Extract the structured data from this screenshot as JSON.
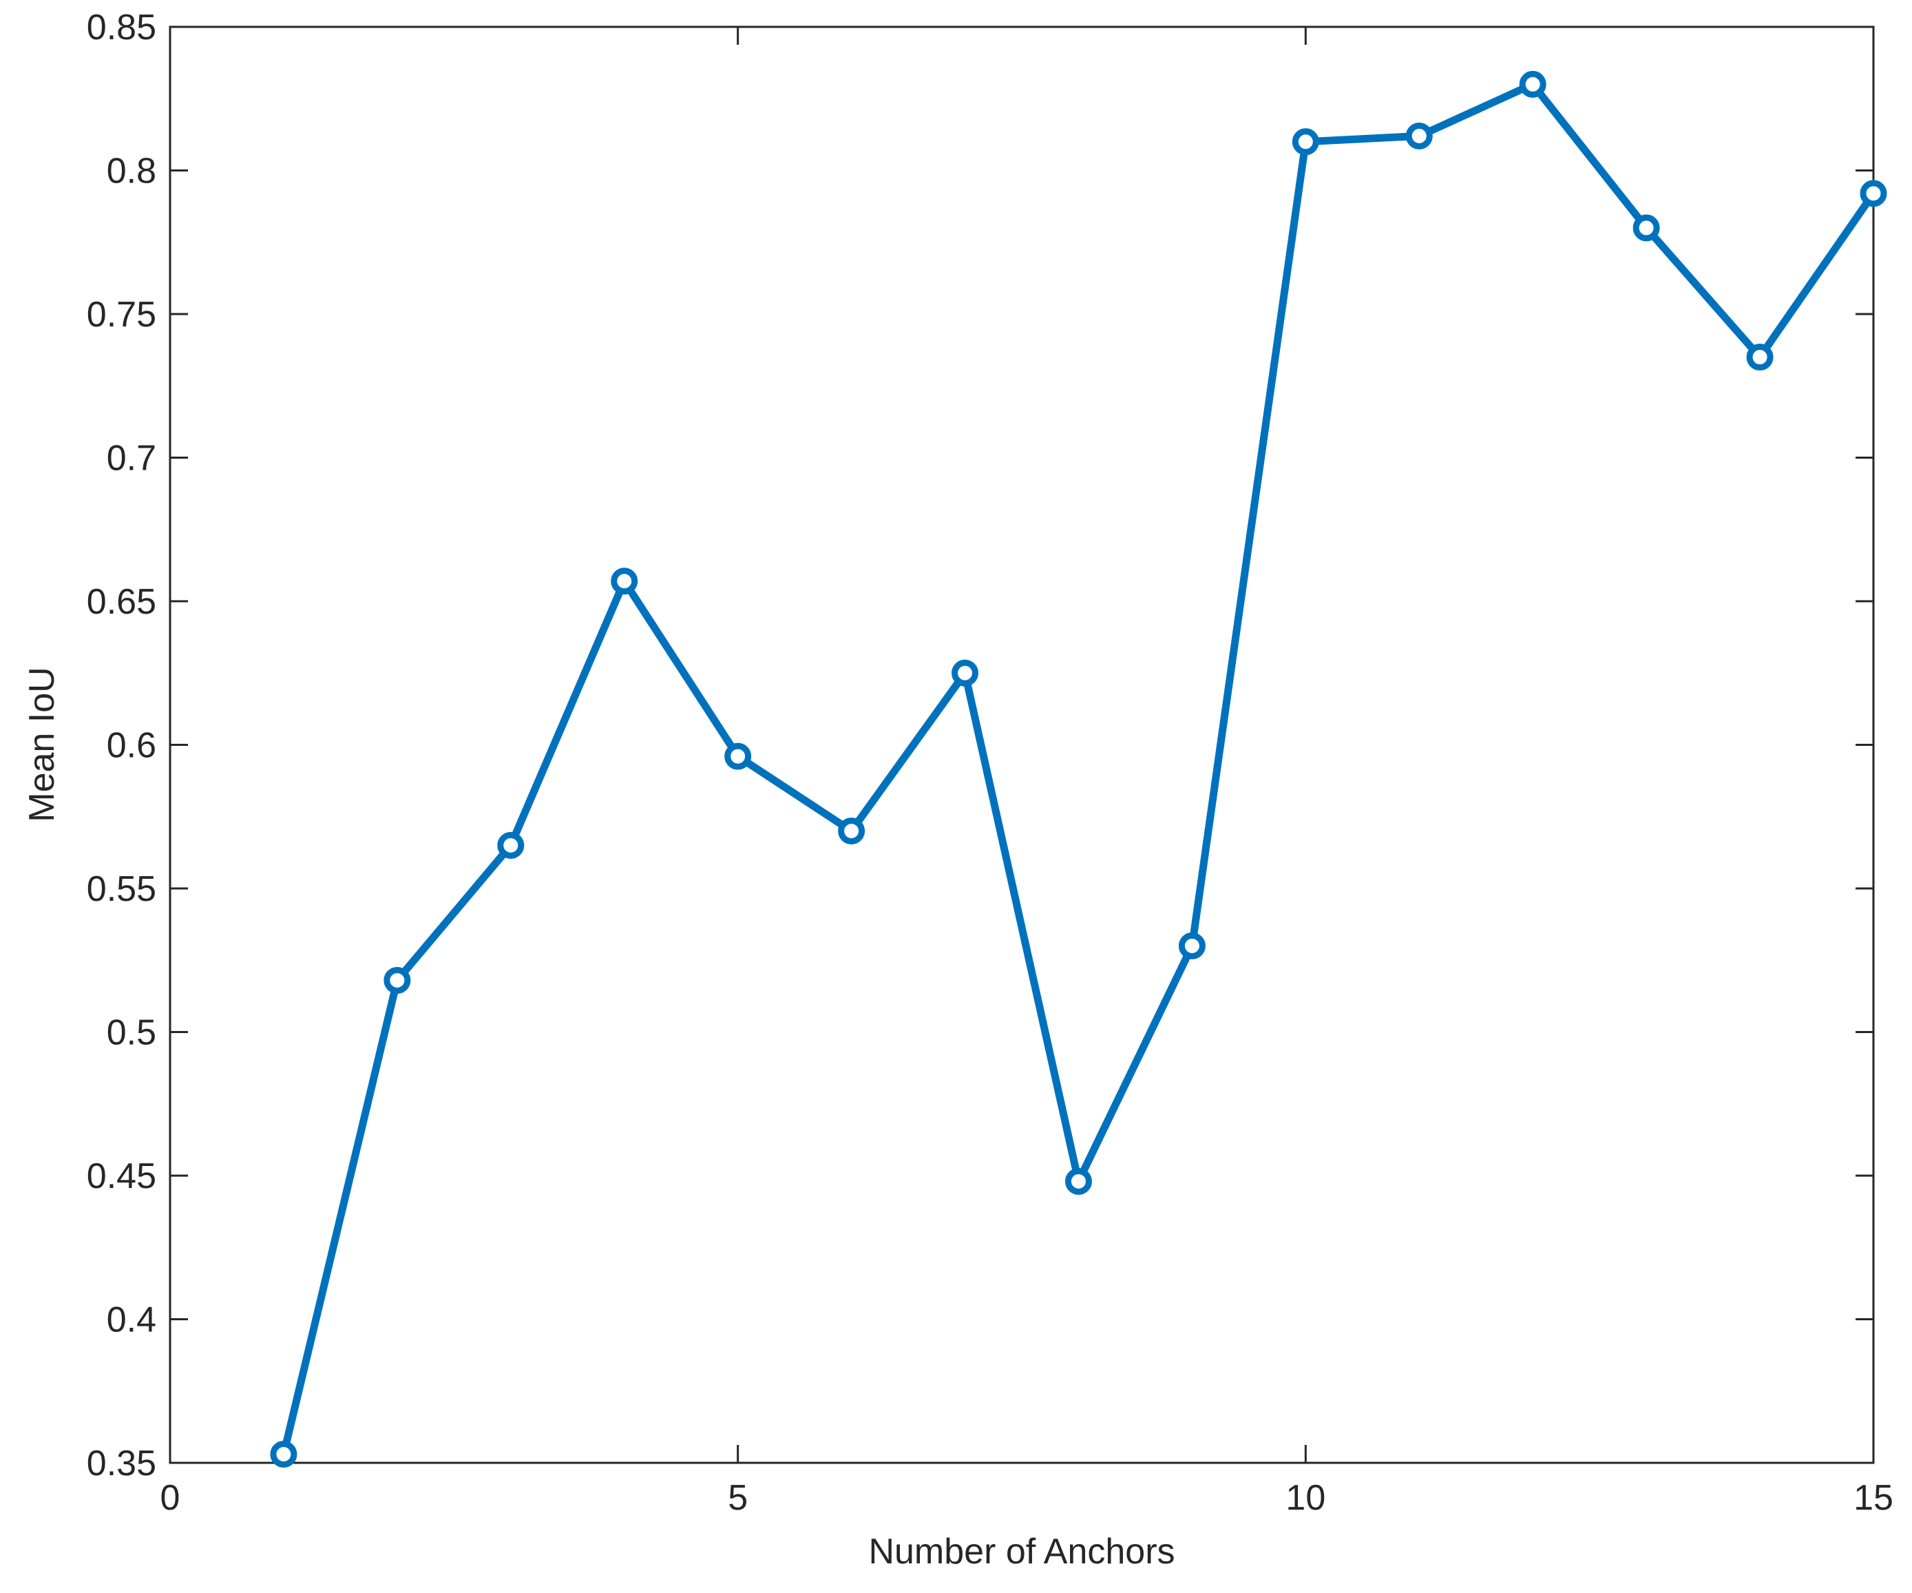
{
  "chart_data": {
    "type": "line",
    "xlabel": "Number of Anchors",
    "ylabel": "Mean IoU",
    "x": [
      1,
      2,
      3,
      4,
      5,
      6,
      7,
      8,
      9,
      10,
      11,
      12,
      13,
      14,
      15
    ],
    "series": [
      {
        "color": "#0072bd",
        "values": [
          0.353,
          0.518,
          0.565,
          0.657,
          0.596,
          0.57,
          0.625,
          0.448,
          0.53,
          0.81,
          0.812,
          0.83,
          0.78,
          0.735,
          0.792
        ]
      }
    ],
    "xlim": [
      0,
      15
    ],
    "xticks": [
      0,
      5,
      10,
      15
    ],
    "ylim": [
      0.35,
      0.85
    ],
    "yticks": [
      0.35,
      0.4,
      0.45,
      0.5,
      0.55,
      0.6,
      0.65,
      0.7,
      0.75,
      0.8,
      0.85
    ],
    "grid": false
  }
}
